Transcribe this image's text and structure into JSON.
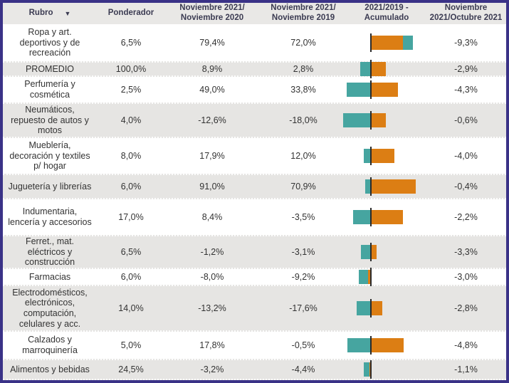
{
  "header": {
    "sort_icon": "▼",
    "columns": [
      {
        "id": "rubro",
        "line1": "Rubro",
        "line2": ""
      },
      {
        "id": "ponderador",
        "line1": "Ponderador",
        "line2": ""
      },
      {
        "id": "nov21_nov20",
        "line1": "Noviembre 2021/",
        "line2": "Noviembre 2020"
      },
      {
        "id": "nov21_nov19",
        "line1": "Noviembre 2021/",
        "line2": "Noviembre 2019"
      },
      {
        "id": "acumulado",
        "line1": "2021/2019 -",
        "line2": "Acumulado"
      },
      {
        "id": "nov21_oct21",
        "line1": "Noviembre",
        "line2": "2021/Octubre 2021"
      }
    ]
  },
  "rows": [
    {
      "rubro": "Ropa y art. deportivos y de recreación",
      "ponderador": "6,5%",
      "nov21_nov20": "79,4%",
      "nov21_nov19": "72,0%",
      "nov21_oct21": "-9,3%",
      "bar": {
        "orange": [
          0,
          45
        ],
        "teal": [
          45,
          59
        ]
      }
    },
    {
      "rubro": "PROMEDIO",
      "ponderador": "100,0%",
      "nov21_nov20": "8,9%",
      "nov21_nov19": "2,8%",
      "nov21_oct21": "-2,9%",
      "bar": {
        "teal": [
          -15,
          0
        ],
        "orange": [
          0,
          21
        ]
      }
    },
    {
      "rubro": "Perfumería y cosmética",
      "ponderador": "2,5%",
      "nov21_nov20": "49,0%",
      "nov21_nov19": "33,8%",
      "nov21_oct21": "-4,3%",
      "bar": {
        "teal": [
          -34,
          0
        ],
        "orange": [
          0,
          38
        ]
      }
    },
    {
      "rubro": "Neumáticos, repuesto de autos y motos",
      "ponderador": "4,0%",
      "nov21_nov20": "-12,6%",
      "nov21_nov19": "-18,0%",
      "nov21_oct21": "-0,6%",
      "bar": {
        "teal": [
          -39,
          0
        ],
        "orange": [
          0,
          21
        ]
      }
    },
    {
      "rubro": "Mueblería, decoración y textiles p/ hogar",
      "ponderador": "8,0%",
      "nov21_nov20": "17,9%",
      "nov21_nov19": "12,0%",
      "nov21_oct21": "-4,0%",
      "bar": {
        "teal": [
          -10,
          0
        ],
        "orange": [
          0,
          33
        ]
      }
    },
    {
      "rubro": "Juguetería y librerías",
      "ponderador": "6,0%",
      "nov21_nov20": "91,0%",
      "nov21_nov19": "70,9%",
      "nov21_oct21": "-0,4%",
      "bar": {
        "teal": [
          -8,
          0
        ],
        "orange": [
          0,
          63
        ]
      }
    },
    {
      "rubro": "Indumentaria, lencería y accesorios",
      "ponderador": "17,0%",
      "nov21_nov20": "8,4%",
      "nov21_nov19": "-3,5%",
      "nov21_oct21": "-2,2%",
      "bar": {
        "teal": [
          -25,
          0
        ],
        "orange": [
          0,
          45
        ]
      }
    },
    {
      "rubro": "Ferret., mat. eléctricos y construcción",
      "ponderador": "6,5%",
      "nov21_nov20": "-1,2%",
      "nov21_nov19": "-3,1%",
      "nov21_oct21": "-3,3%",
      "bar": {
        "teal": [
          -14,
          0
        ],
        "orange": [
          0,
          8
        ]
      }
    },
    {
      "rubro": "Farmacias",
      "ponderador": "6,0%",
      "nov21_nov20": "-8,0%",
      "nov21_nov19": "-9,2%",
      "nov21_oct21": "-3,0%",
      "bar": {
        "teal": [
          -17,
          -4
        ],
        "orange": [
          -4,
          0
        ]
      }
    },
    {
      "rubro": "Electrodomésticos, electrónicos, computación, celulares y acc.",
      "ponderador": "14,0%",
      "nov21_nov20": "-13,2%",
      "nov21_nov19": "-17,6%",
      "nov21_oct21": "-2,8%",
      "bar": {
        "teal": [
          -20,
          0
        ],
        "orange": [
          0,
          16
        ]
      }
    },
    {
      "rubro": "Calzados y marroquinería",
      "ponderador": "5,0%",
      "nov21_nov20": "17,8%",
      "nov21_nov19": "-0,5%",
      "nov21_oct21": "-4,8%",
      "bar": {
        "teal": [
          -33,
          0
        ],
        "orange": [
          0,
          46
        ]
      }
    },
    {
      "rubro": "Alimentos y bebidas",
      "ponderador": "24,5%",
      "nov21_nov20": "-3,2%",
      "nov21_nov19": "-4,4%",
      "nov21_oct21": "-1,1%",
      "bar": {
        "teal": [
          -10,
          -2
        ],
        "orange": [
          -2,
          0
        ]
      }
    }
  ],
  "colors": {
    "teal": "#46a5a0",
    "orange": "#dc7e14",
    "border": "#3a3287",
    "header_bg": "#e9e8e6",
    "row_alt_bg": "#e6e5e3",
    "axis": "#2b2b2b"
  },
  "chart_data": {
    "type": "table",
    "title": "Ventas por rubro - variaciones porcentuales",
    "columns": [
      "Rubro",
      "Ponderador",
      "Noviembre 2021/Noviembre 2020",
      "Noviembre 2021/Noviembre 2019",
      "2021/2019 - Acumulado",
      "Noviembre 2021/Octubre 2021"
    ],
    "rows": [
      [
        "Ropa y art. deportivos y de recreación",
        6.5,
        79.4,
        72.0,
        null,
        -9.3
      ],
      [
        "PROMEDIO",
        100.0,
        8.9,
        2.8,
        null,
        -2.9
      ],
      [
        "Perfumería y cosmética",
        2.5,
        49.0,
        33.8,
        null,
        -4.3
      ],
      [
        "Neumáticos, repuesto de autos y motos",
        4.0,
        -12.6,
        -18.0,
        null,
        -0.6
      ],
      [
        "Mueblería, decoración y textiles p/ hogar",
        8.0,
        17.9,
        12.0,
        null,
        -4.0
      ],
      [
        "Juguetería y librerías",
        6.0,
        91.0,
        70.9,
        null,
        -0.4
      ],
      [
        "Indumentaria, lencería y accesorios",
        17.0,
        8.4,
        -3.5,
        null,
        -2.2
      ],
      [
        "Ferret., mat. eléctricos y construcción",
        6.5,
        -1.2,
        -3.1,
        null,
        -3.3
      ],
      [
        "Farmacias",
        6.0,
        -8.0,
        -9.2,
        null,
        -3.0
      ],
      [
        "Electrodomésticos, electrónicos, computación, celulares y acc.",
        14.0,
        -13.2,
        -17.6,
        null,
        -2.8
      ],
      [
        "Calzados y marroquinería",
        5.0,
        17.8,
        -0.5,
        null,
        -4.8
      ],
      [
        "Alimentos y bebidas",
        24.5,
        -3.2,
        -4.4,
        null,
        -1.1
      ]
    ],
    "embedded_bar_column": {
      "label": "2021/2019 - Acumulado",
      "type": "diverging-stacked-bar",
      "note": "bars have no numeric labels; segment extents estimated in px relative to zero axis",
      "series_colors": {
        "teal": "#46a5a0",
        "orange": "#dc7e14"
      },
      "bars": [
        {
          "orange": [
            0,
            45
          ],
          "teal": [
            45,
            59
          ]
        },
        {
          "teal": [
            -15,
            0
          ],
          "orange": [
            0,
            21
          ]
        },
        {
          "teal": [
            -34,
            0
          ],
          "orange": [
            0,
            38
          ]
        },
        {
          "teal": [
            -39,
            0
          ],
          "orange": [
            0,
            21
          ]
        },
        {
          "teal": [
            -10,
            0
          ],
          "orange": [
            0,
            33
          ]
        },
        {
          "teal": [
            -8,
            0
          ],
          "orange": [
            0,
            63
          ]
        },
        {
          "teal": [
            -25,
            0
          ],
          "orange": [
            0,
            45
          ]
        },
        {
          "teal": [
            -14,
            0
          ],
          "orange": [
            0,
            8
          ]
        },
        {
          "teal": [
            -17,
            -4
          ],
          "orange": [
            -4,
            0
          ]
        },
        {
          "teal": [
            -20,
            0
          ],
          "orange": [
            0,
            16
          ]
        },
        {
          "teal": [
            -33,
            0
          ],
          "orange": [
            0,
            46
          ]
        },
        {
          "teal": [
            -10,
            -2
          ],
          "orange": [
            -2,
            0
          ]
        }
      ]
    }
  }
}
